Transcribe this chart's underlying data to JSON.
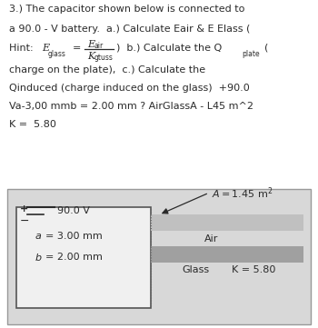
{
  "bg_color": "#ffffff",
  "text_color": "#2a2a2a",
  "line1": "3.) The capacitor shown below is connected to",
  "line2": "a 90.0 - V battery.  a.) Calculate Eair & E Elass (",
  "line5": "charge on the plate),  c.) Calculate the",
  "line6": "Qinduced (charge induced on the glass)  +90.0",
  "line7": "Va-3,00 mmb = 2.00 mm ? AirGlassA - L45 m^2",
  "line8": "K =  5.80",
  "diagram_outer_color": "#c8c8c8",
  "diagram_inner_bg": "#e8e8e8",
  "inner_box_bg": "#f0f0f0",
  "inner_box_edge": "#555555",
  "air_bar_color": "#c0c0c0",
  "glass_bar_color": "#a0a0a0",
  "voltage_label": "90.0 V",
  "a_label": "a = 3.00 mm",
  "b_label": "b = 2.00 mm",
  "area_label": "A = 1.45 m²",
  "air_label": "Air",
  "glass_label": "Glass",
  "k_label": "K = 5.80"
}
